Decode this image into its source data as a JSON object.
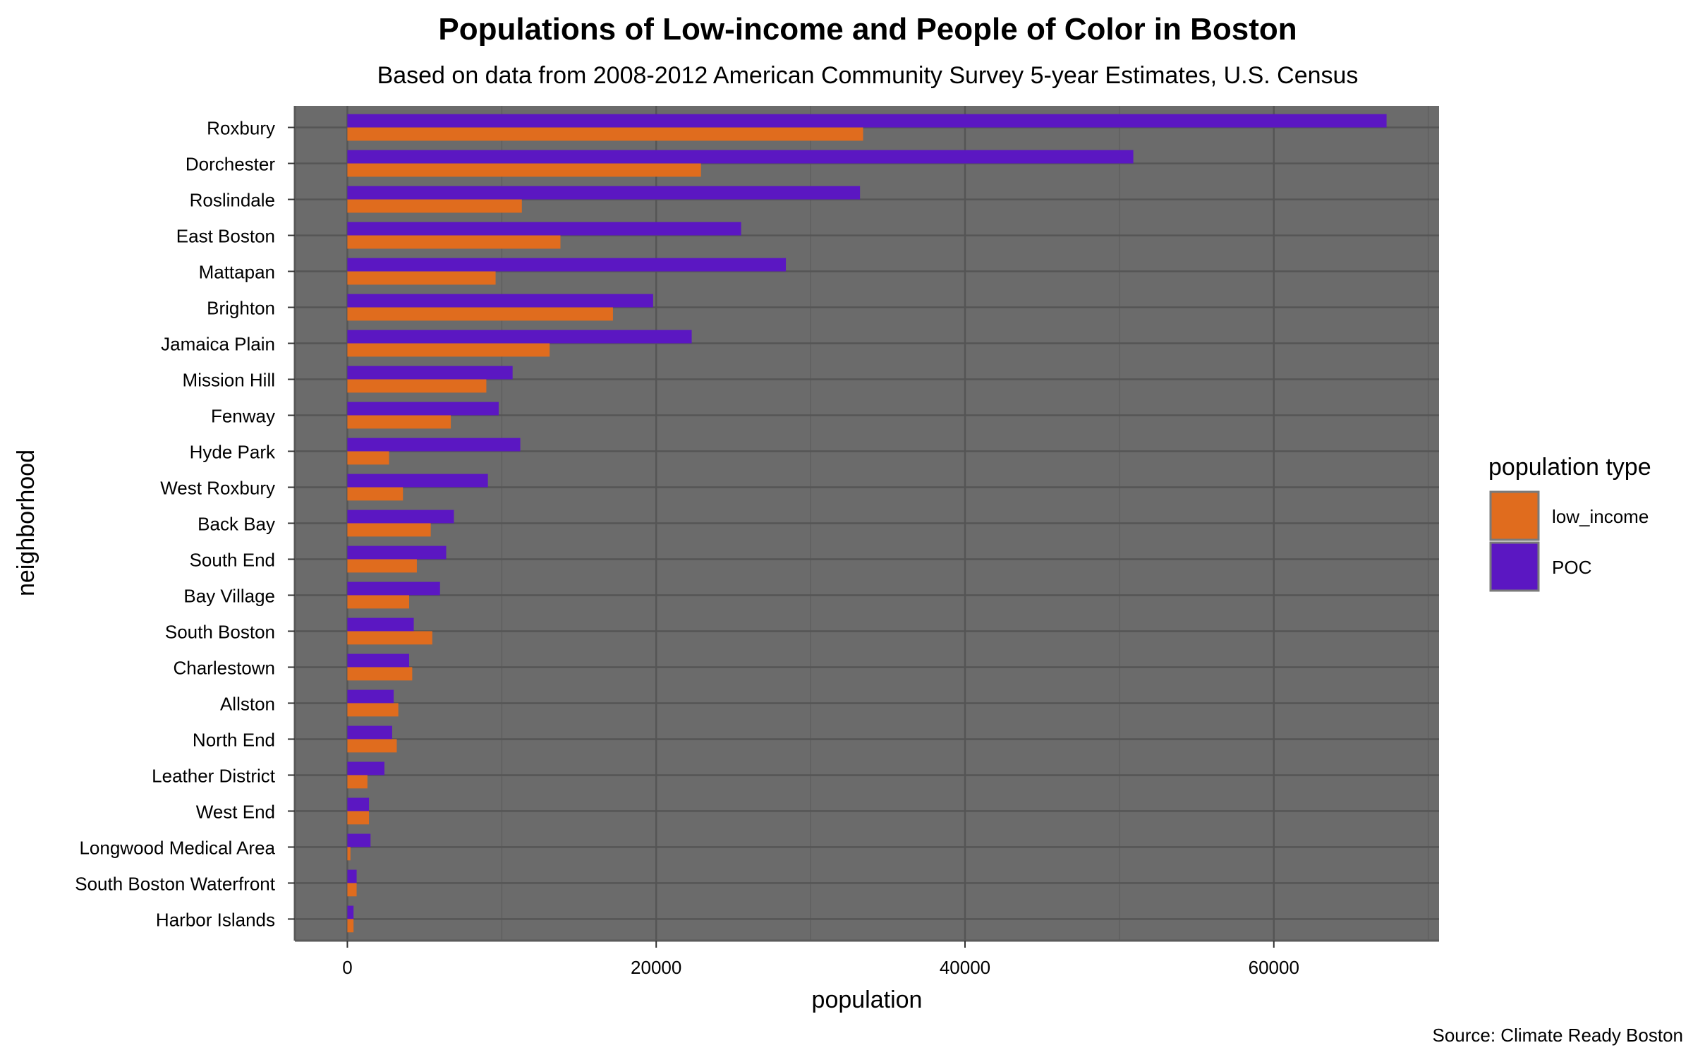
{
  "colors": {
    "panel": "#6b6b6b",
    "grid_major": "#555555",
    "grid_minor": "#5f5f5f",
    "low_income": "#e06c1e",
    "POC": "#5b17c2",
    "legend_key_border": "#7a7a7a"
  },
  "legend": {
    "title": "population type",
    "items": [
      {
        "key": "low_income",
        "label": "low_income",
        "color": "#e06c1e"
      },
      {
        "key": "POC",
        "label": "POC",
        "color": "#5b17c2"
      }
    ]
  },
  "caption": "Source: Climate Ready Boston",
  "chart_data": {
    "type": "bar",
    "orientation": "horizontal",
    "title": "Populations of Low-income and People of Color in Boston",
    "subtitle": "Based on data from 2008-2012 American Community Survey 5-year Estimates, U.S. Census",
    "xlabel": "population",
    "ylabel": "neighborhood",
    "xlim": [
      -3400,
      70700
    ],
    "xticks": [
      0,
      20000,
      40000,
      60000
    ],
    "grid": true,
    "legend_position": "right",
    "categories": [
      "Roxbury",
      "Dorchester",
      "Roslindale",
      "East Boston",
      "Mattapan",
      "Brighton",
      "Jamaica Plain",
      "Mission Hill",
      "Fenway",
      "Hyde Park",
      "West Roxbury",
      "Back Bay",
      "South End",
      "Bay Village",
      "South Boston",
      "Charlestown",
      "Allston",
      "North End",
      "Leather District",
      "West End",
      "Longwood Medical Area",
      "South Boston Waterfront",
      "Harbor Islands"
    ],
    "series": [
      {
        "name": "POC",
        "values": [
          67300,
          50900,
          33200,
          25500,
          28400,
          19800,
          22300,
          10700,
          9800,
          11200,
          9100,
          6900,
          6400,
          6000,
          4300,
          4000,
          3000,
          2900,
          2400,
          1400,
          1500,
          600,
          400
        ]
      },
      {
        "name": "low_income",
        "values": [
          33400,
          22900,
          11300,
          13800,
          9600,
          17200,
          13100,
          9000,
          6700,
          2700,
          3600,
          5400,
          4500,
          4000,
          5500,
          4200,
          3300,
          3200,
          1300,
          1400,
          200,
          600,
          400
        ]
      }
    ]
  }
}
